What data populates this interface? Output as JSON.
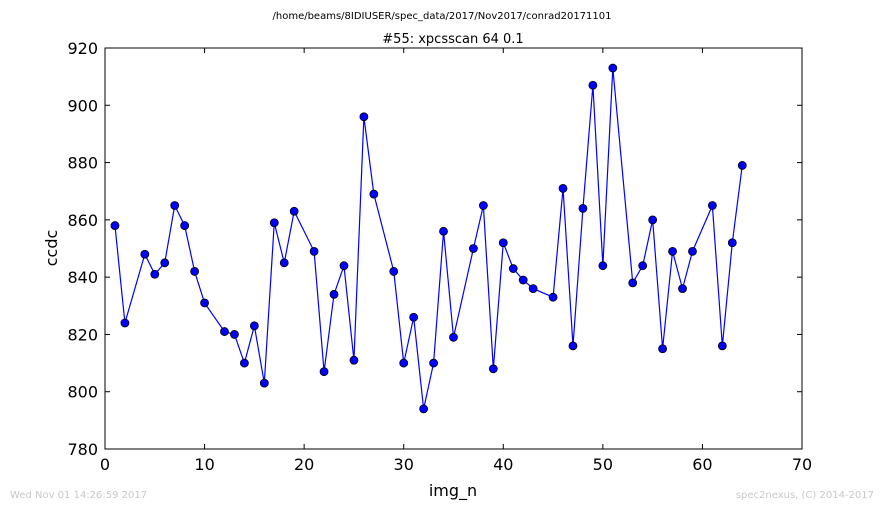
{
  "header": {
    "path": "/home/beams/8IDIUSER/spec_data/2017/Nov2017/conrad20171101",
    "title": "#55: xpcsscan 64 0.1"
  },
  "footer": {
    "timestamp": "Wed Nov 01 14:26:59 2017",
    "credit": "spec2nexus, (C) 2014-2017"
  },
  "chart_data": {
    "type": "line",
    "title": "#55: xpcsscan 64 0.1",
    "xlabel": "img_n",
    "ylabel": "ccdc",
    "xlim": [
      0,
      70
    ],
    "ylim": [
      780,
      920
    ],
    "xticks": [
      0,
      10,
      20,
      30,
      40,
      50,
      60,
      70
    ],
    "yticks": [
      780,
      800,
      820,
      840,
      860,
      880,
      900,
      920
    ],
    "grid": false,
    "line_color": "#0000ff",
    "marker": "circle",
    "series": [
      {
        "x": [
          1,
          2,
          4,
          5,
          6,
          7,
          8,
          9,
          10,
          12,
          13,
          14,
          15,
          16,
          17,
          18,
          19,
          21,
          22,
          23,
          24,
          25,
          26,
          27,
          29,
          30,
          31,
          32,
          33,
          34,
          35,
          37,
          38,
          39,
          40,
          41,
          42,
          43,
          45,
          46,
          47,
          48,
          49,
          50,
          51,
          53,
          54,
          55,
          56,
          57,
          58,
          59,
          61,
          62,
          63,
          64
        ],
        "values": [
          858,
          824,
          848,
          841,
          845,
          865,
          858,
          842,
          831,
          821,
          820,
          810,
          823,
          803,
          859,
          845,
          863,
          849,
          807,
          834,
          844,
          811,
          896,
          869,
          842,
          810,
          826,
          794,
          810,
          856,
          819,
          850,
          865,
          808,
          852,
          843,
          839,
          836,
          833,
          871,
          816,
          864,
          907,
          844,
          913,
          838,
          844,
          860,
          815,
          849,
          836,
          849,
          865,
          816,
          852,
          879
        ]
      }
    ]
  }
}
